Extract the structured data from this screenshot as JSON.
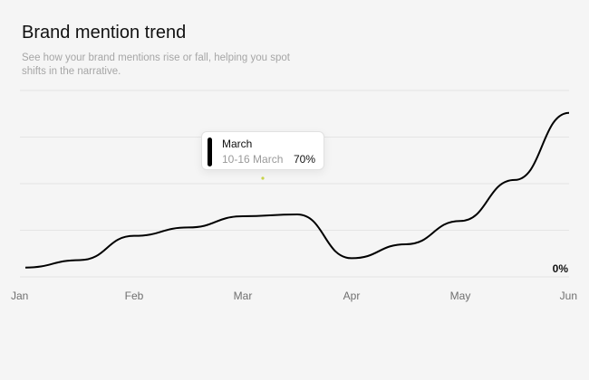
{
  "header": {
    "title": "Brand mention trend",
    "subtitle": "See how your brand mentions rise or fall, helping you spot shifts in the narrative."
  },
  "tooltip": {
    "title": "March",
    "range": "10-16 March",
    "value": "70%"
  },
  "end_label": "0%",
  "colors": {
    "line": "#000000",
    "grid": "#e4e4e4",
    "marker": "#c9d44a",
    "background": "#f5f5f5"
  },
  "chart_data": {
    "type": "line",
    "categories": [
      "Jan",
      "Feb",
      "Mar",
      "Apr",
      "May",
      "Jun"
    ],
    "x": [
      0,
      0.5,
      1,
      1.5,
      2,
      2.5,
      3,
      3.5,
      4,
      4.5,
      5
    ],
    "values": [
      10,
      18,
      44,
      53,
      65,
      67,
      20,
      35,
      60,
      104,
      176
    ],
    "ylim": [
      0,
      200
    ],
    "yticks": [
      0,
      50,
      100,
      150,
      200
    ],
    "grid": true,
    "legend": "none"
  }
}
